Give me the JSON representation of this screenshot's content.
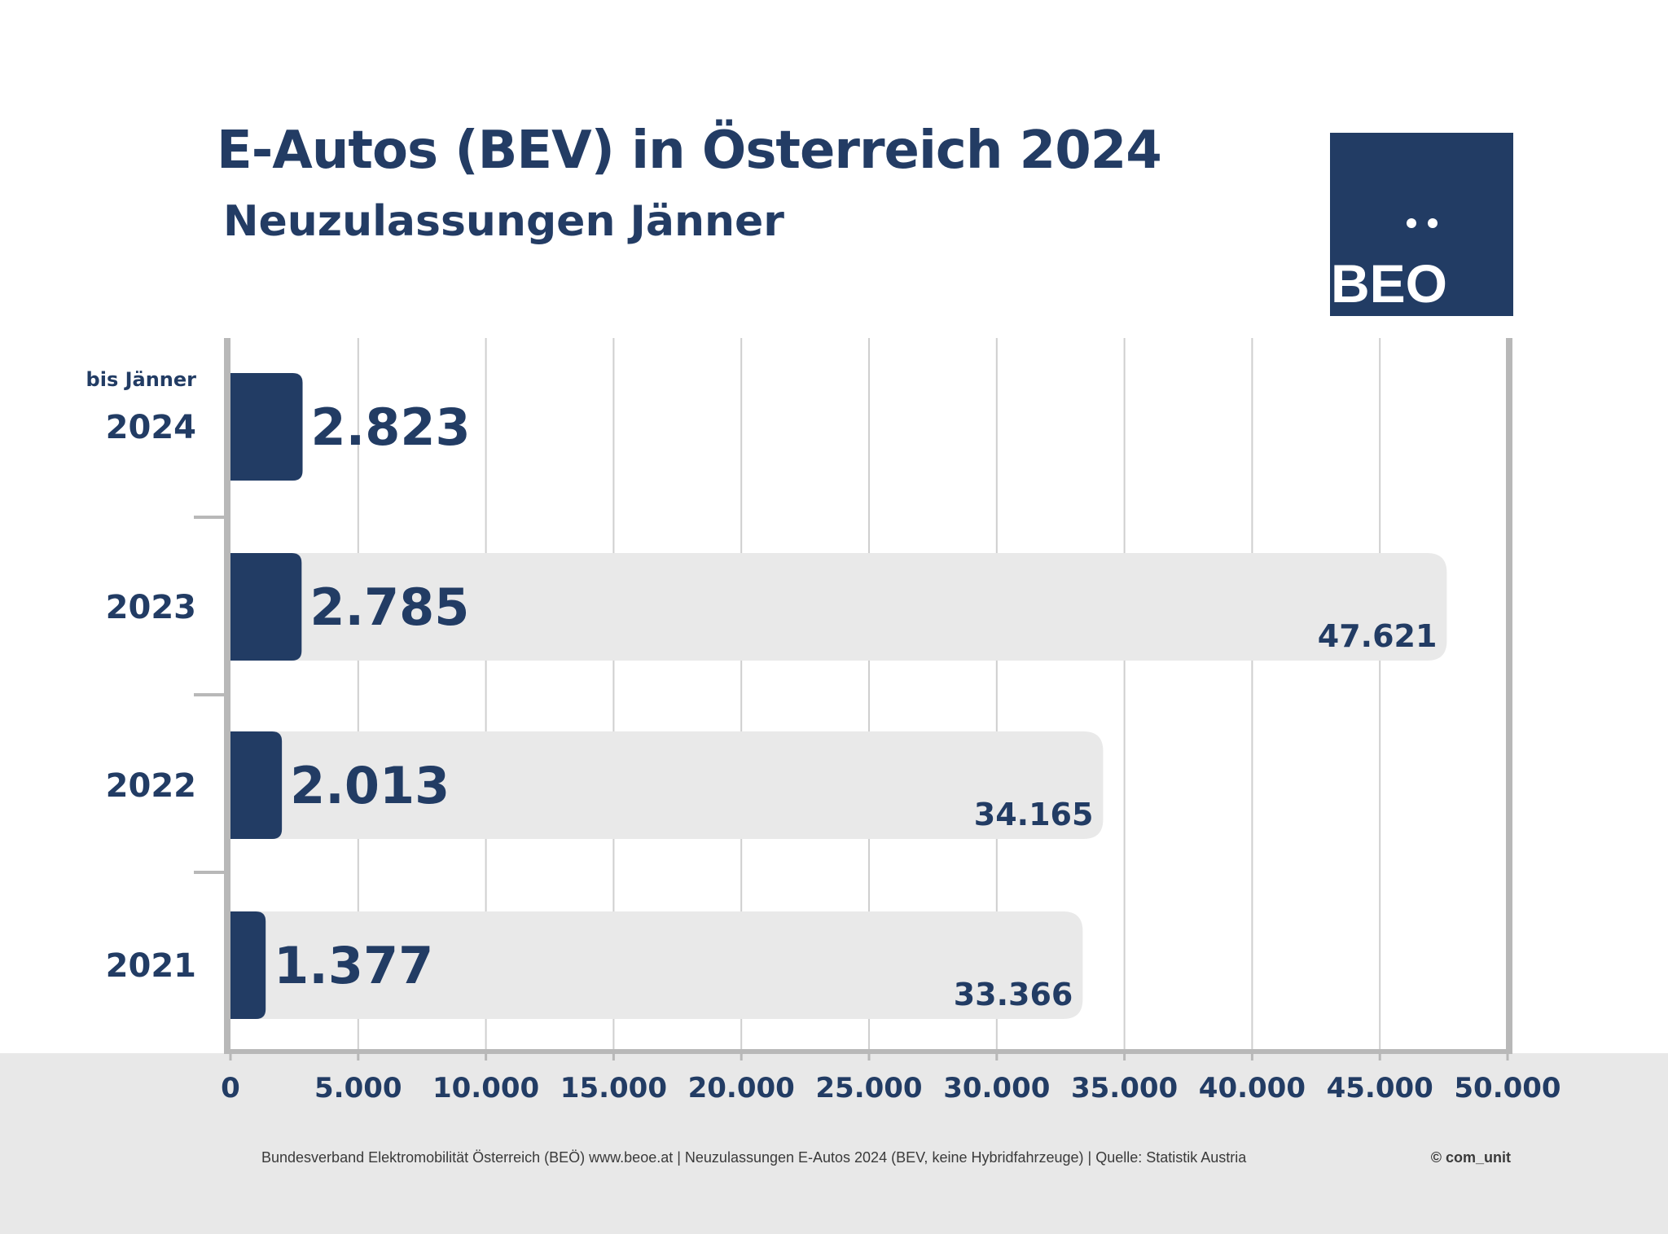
{
  "header": {
    "title": "E-Autos (BEV) in Österreich 2024",
    "subtitle": "Neuzulassungen Jänner"
  },
  "logo": {
    "text": "BEO",
    "background": "#223c64"
  },
  "footer": {
    "source": "Bundesverband Elektromobilität Österreich (BEÖ) www.beoe.at | Neuzulassungen E-Autos 2024 (BEV, keine Hybridfahrzeuge) | Quelle: Statistik Austria",
    "copyright": "© com_unit"
  },
  "chart_data": {
    "type": "bar",
    "orientation": "horizontal",
    "categories": [
      "2024",
      "2023",
      "2022",
      "2021"
    ],
    "category_notes": [
      "bis Jänner",
      "",
      "",
      ""
    ],
    "series": [
      {
        "values": [
          2823,
          2785,
          2013,
          1377
        ],
        "labels": [
          "2.823",
          "2.785",
          "2.013",
          "1.377"
        ],
        "color": "#223c64"
      },
      {
        "values": [
          null,
          47621,
          34165,
          33366
        ],
        "labels": [
          "",
          "47.621",
          "34.165",
          "33.366"
        ],
        "color": "#e9e9e9"
      }
    ],
    "xlim": [
      0,
      50000
    ],
    "xticks": [
      0,
      5000,
      10000,
      15000,
      20000,
      25000,
      30000,
      35000,
      40000,
      45000,
      50000
    ],
    "xtick_labels": [
      "0",
      "5.000",
      "10.000",
      "15.000",
      "20.000",
      "25.000",
      "30.000",
      "35.000",
      "40.000",
      "45.000",
      "50.000"
    ],
    "grid": true,
    "legend": "none"
  }
}
